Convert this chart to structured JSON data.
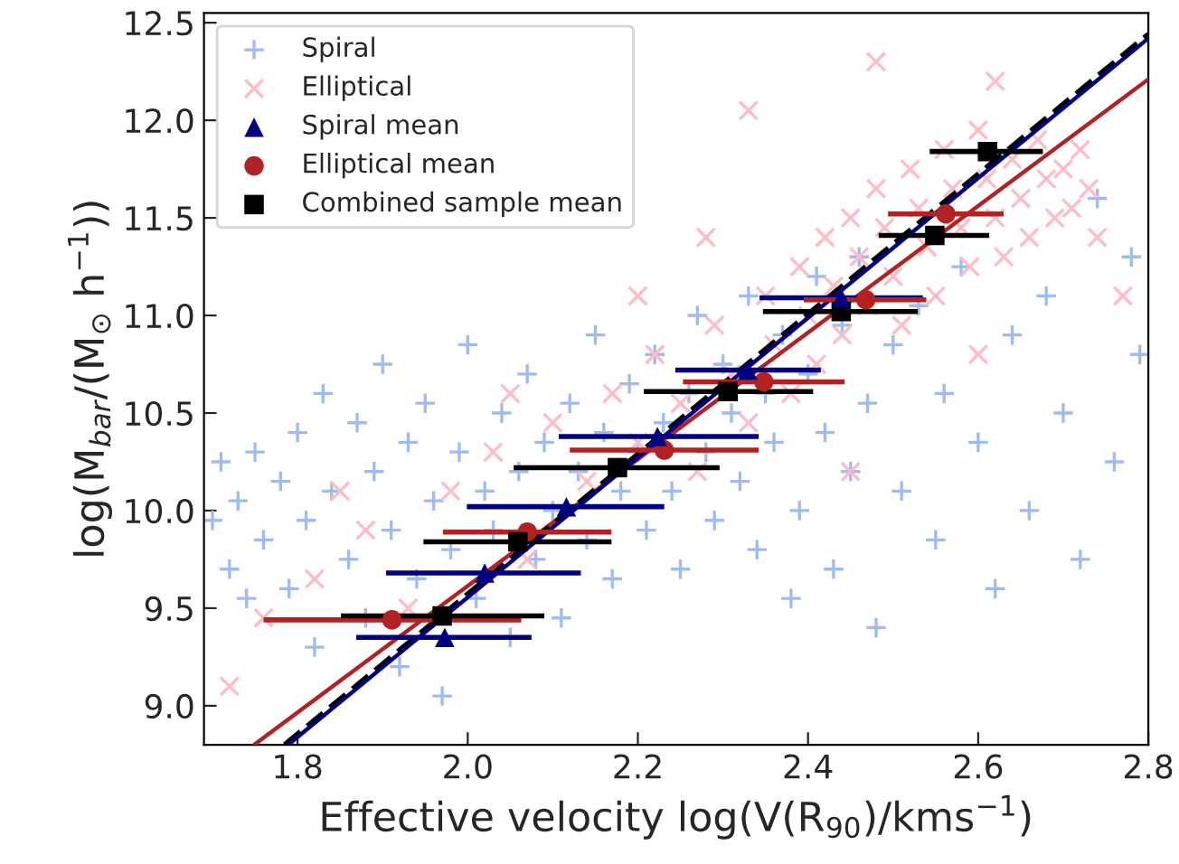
{
  "chart_data": {
    "type": "scatter",
    "xlabel": "Effective velocity log(V(R$_{90}$)/kms$^{−1}$)",
    "ylabel": "log(M$_{bar}$/(M$_{⊙}$ h$^{−1}$))",
    "xlim": [
      1.69,
      2.8
    ],
    "ylim": [
      8.8,
      12.55
    ],
    "xticks": [
      1.8,
      {
        "value": 2.0,
        "label": "2.0"
      },
      2.2,
      2.4,
      2.6,
      2.8
    ],
    "yticks": [
      {
        "value": 9.0,
        "label": "9.0"
      },
      9.5,
      {
        "value": 10.0,
        "label": "10.0"
      },
      10.5,
      {
        "value": 11.0,
        "label": "11.0"
      },
      11.5,
      {
        "value": 12.0,
        "label": "12.0"
      },
      12.5
    ],
    "grid": false,
    "legend": "top left",
    "series": [
      {
        "name": "Spiral",
        "marker": "plus",
        "color": "#9fbcf2",
        "x": [
          1.7,
          1.71,
          1.72,
          1.73,
          1.74,
          1.75,
          1.76,
          1.78,
          1.79,
          1.8,
          1.81,
          1.82,
          1.83,
          1.84,
          1.86,
          1.87,
          1.88,
          1.89,
          1.9,
          1.91,
          1.92,
          1.93,
          1.94,
          1.95,
          1.96,
          1.97,
          1.98,
          1.99,
          2.0,
          2.01,
          2.02,
          2.03,
          2.04,
          2.05,
          2.06,
          2.07,
          2.08,
          2.09,
          2.1,
          2.11,
          2.12,
          2.13,
          2.14,
          2.15,
          2.16,
          2.17,
          2.18,
          2.19,
          2.2,
          2.21,
          2.22,
          2.23,
          2.24,
          2.25,
          2.26,
          2.27,
          2.28,
          2.29,
          2.3,
          2.31,
          2.32,
          2.33,
          2.34,
          2.35,
          2.36,
          2.37,
          2.38,
          2.39,
          2.4,
          2.41,
          2.42,
          2.43,
          2.44,
          2.45,
          2.46,
          2.47,
          2.48,
          2.5,
          2.51,
          2.53,
          2.55,
          2.56,
          2.58,
          2.6,
          2.62,
          2.64,
          2.66,
          2.68,
          2.7,
          2.72,
          2.74,
          2.76,
          2.78,
          2.79
        ],
        "values": [
          9.95,
          10.25,
          9.7,
          10.05,
          9.55,
          10.3,
          9.85,
          10.15,
          9.6,
          10.4,
          9.95,
          9.3,
          10.6,
          10.1,
          9.75,
          10.45,
          9.45,
          10.2,
          10.75,
          9.9,
          9.2,
          10.35,
          9.65,
          10.55,
          10.05,
          9.05,
          9.8,
          10.3,
          10.85,
          9.55,
          10.1,
          9.9,
          10.5,
          9.35,
          10.2,
          10.7,
          9.75,
          10.35,
          10.0,
          9.45,
          10.55,
          10.2,
          9.85,
          10.9,
          10.4,
          9.65,
          10.1,
          10.65,
          10.3,
          9.9,
          10.8,
          10.45,
          10.1,
          9.7,
          10.6,
          11.0,
          10.3,
          9.95,
          10.75,
          10.5,
          10.15,
          11.1,
          9.8,
          10.6,
          10.35,
          10.9,
          9.55,
          10.0,
          10.7,
          11.2,
          10.4,
          9.7,
          10.95,
          10.2,
          11.3,
          10.55,
          9.4,
          10.85,
          10.1,
          11.05,
          9.85,
          10.6,
          11.25,
          10.35,
          9.6,
          10.9,
          10.0,
          11.1,
          10.5,
          9.75,
          11.6,
          10.25,
          11.3,
          10.8
        ]
      },
      {
        "name": "Elliptical",
        "marker": "cross",
        "color": "#ffbcc6",
        "x": [
          1.72,
          1.76,
          1.82,
          1.88,
          1.93,
          1.98,
          2.03,
          2.07,
          2.1,
          2.14,
          2.17,
          2.2,
          2.22,
          2.25,
          2.27,
          2.29,
          2.31,
          2.33,
          2.35,
          2.36,
          2.38,
          2.39,
          2.4,
          2.41,
          2.42,
          2.43,
          2.44,
          2.45,
          2.46,
          2.47,
          2.48,
          2.49,
          2.5,
          2.51,
          2.52,
          2.53,
          2.54,
          2.55,
          2.56,
          2.57,
          2.58,
          2.59,
          2.6,
          2.61,
          2.62,
          2.63,
          2.64,
          2.65,
          2.66,
          2.67,
          2.68,
          2.69,
          2.7,
          2.71,
          2.72,
          2.73,
          2.74,
          2.62,
          2.48,
          2.77,
          2.2,
          2.05,
          2.33,
          2.45,
          2.28,
          1.85,
          2.6
        ],
        "values": [
          9.1,
          9.45,
          9.65,
          9.9,
          9.5,
          10.1,
          10.3,
          9.75,
          10.45,
          10.15,
          10.6,
          10.35,
          10.8,
          10.55,
          10.2,
          10.95,
          10.7,
          10.45,
          11.1,
          10.85,
          10.6,
          11.25,
          11.0,
          10.75,
          11.4,
          11.15,
          10.9,
          11.5,
          11.3,
          11.05,
          11.65,
          11.45,
          11.2,
          10.95,
          11.75,
          11.55,
          11.35,
          11.1,
          11.85,
          11.65,
          11.45,
          11.25,
          11.95,
          11.7,
          11.5,
          11.3,
          11.8,
          11.6,
          11.4,
          11.9,
          11.7,
          11.5,
          11.75,
          11.55,
          11.85,
          11.65,
          11.4,
          12.2,
          12.3,
          11.1,
          11.1,
          10.6,
          12.05,
          10.2,
          11.4,
          10.1,
          10.8
        ]
      },
      {
        "type": "line",
        "color": "#b22222",
        "line_style": "solid",
        "x": [
          1.749,
          2.8
        ],
        "values": [
          8.8,
          12.21
        ]
      },
      {
        "type": "line",
        "color": "#000000",
        "line_style": "dashed",
        "x": [
          1.785,
          2.8
        ],
        "values": [
          8.8,
          12.44
        ]
      },
      {
        "type": "line",
        "color": "#000080",
        "line_style": "solid",
        "x": [
          1.789,
          2.8
        ],
        "values": [
          8.8,
          12.42
        ]
      },
      {
        "name": "Spiral mean",
        "marker": "triangle",
        "color": "#000080",
        "x": [
          1.973,
          2.02,
          2.116,
          2.223,
          2.329,
          2.439
        ],
        "values": [
          9.35,
          9.68,
          10.02,
          10.38,
          10.72,
          11.09
        ],
        "xerrors": [
          [
            1.869,
            2.075
          ],
          [
            1.904,
            2.133
          ],
          [
            1.999,
            2.231
          ],
          [
            2.107,
            2.342
          ],
          [
            2.244,
            2.415
          ],
          [
            2.343,
            2.535
          ]
        ]
      },
      {
        "name": "Elliptical mean",
        "marker": "circle",
        "color": "#b22222",
        "x": [
          1.911,
          2.07,
          2.231,
          2.348,
          2.468,
          2.562
        ],
        "values": [
          9.44,
          9.89,
          10.31,
          10.66,
          11.08,
          11.52
        ],
        "xerrors": [
          [
            1.76,
            2.063
          ],
          [
            1.971,
            2.169
          ],
          [
            2.12,
            2.342
          ],
          [
            2.253,
            2.443
          ],
          [
            2.395,
            2.539
          ],
          [
            2.494,
            2.63
          ]
        ]
      },
      {
        "name": "Combined sample mean",
        "marker": "square",
        "color": "#000000",
        "x": [
          1.97,
          2.059,
          2.176,
          2.306,
          2.439,
          2.549,
          2.611
        ],
        "values": [
          9.46,
          9.84,
          10.22,
          10.61,
          11.02,
          11.41,
          11.84
        ],
        "xerrors": [
          [
            1.851,
            2.09
          ],
          [
            1.948,
            2.169
          ],
          [
            2.054,
            2.296
          ],
          [
            2.207,
            2.406
          ],
          [
            2.347,
            2.529
          ],
          [
            2.483,
            2.613
          ],
          [
            2.543,
            2.676
          ]
        ]
      }
    ]
  }
}
